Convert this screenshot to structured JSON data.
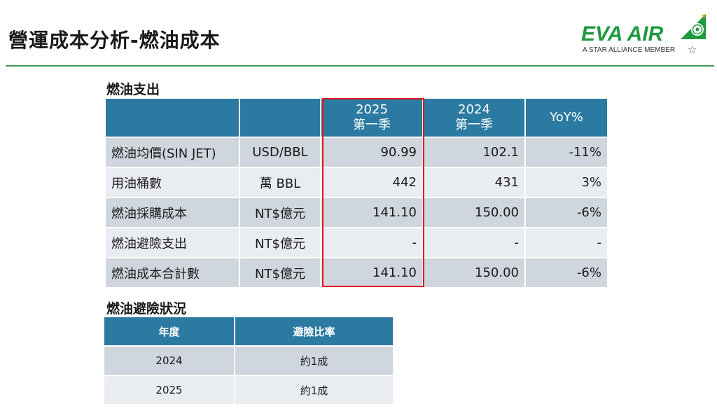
{
  "header": {
    "title": "營運成本分析-燃油成本",
    "logo_text": "EVA AIR",
    "logo_sub": "A STAR ALLIANCE MEMBER",
    "brand_color": "#1e9a3f",
    "rule_color": "#3d9a55"
  },
  "fuel_expense": {
    "section_title": "燃油支出",
    "columns": {
      "name": "",
      "unit": "",
      "y2025_line1": "2025",
      "y2025_line2": "第一季",
      "y2024_line1": "2024",
      "y2024_line2": "第一季",
      "yoy": "YoY%"
    },
    "rows": [
      {
        "name": "燃油均價(SIN JET)",
        "unit": "USD/BBL",
        "y2025": "90.99",
        "y2024": "102.1",
        "yoy": "-11%"
      },
      {
        "name": "用油桶數",
        "unit": "萬 BBL",
        "y2025": "442",
        "y2024": "431",
        "yoy": "3%"
      },
      {
        "name": "燃油採購成本",
        "unit": "NT$億元",
        "y2025": "141.10",
        "y2024": "150.00",
        "yoy": "-6%"
      },
      {
        "name": "燃油避險支出",
        "unit": "NT$億元",
        "y2025": "-",
        "y2024": "-",
        "yoy": "-"
      },
      {
        "name": "燃油成本合計數",
        "unit": "NT$億元",
        "y2025": "141.10",
        "y2024": "150.00",
        "yoy": "-6%"
      }
    ],
    "header_color": "#2b7aa1",
    "highlight_color": "#e3161b"
  },
  "hedging": {
    "section_title": "燃油避險狀況",
    "columns": {
      "year": "年度",
      "ratio": "避險比率"
    },
    "rows": [
      {
        "year": "2024",
        "ratio": "約1成"
      },
      {
        "year": "2025",
        "ratio": "約1成"
      }
    ]
  }
}
